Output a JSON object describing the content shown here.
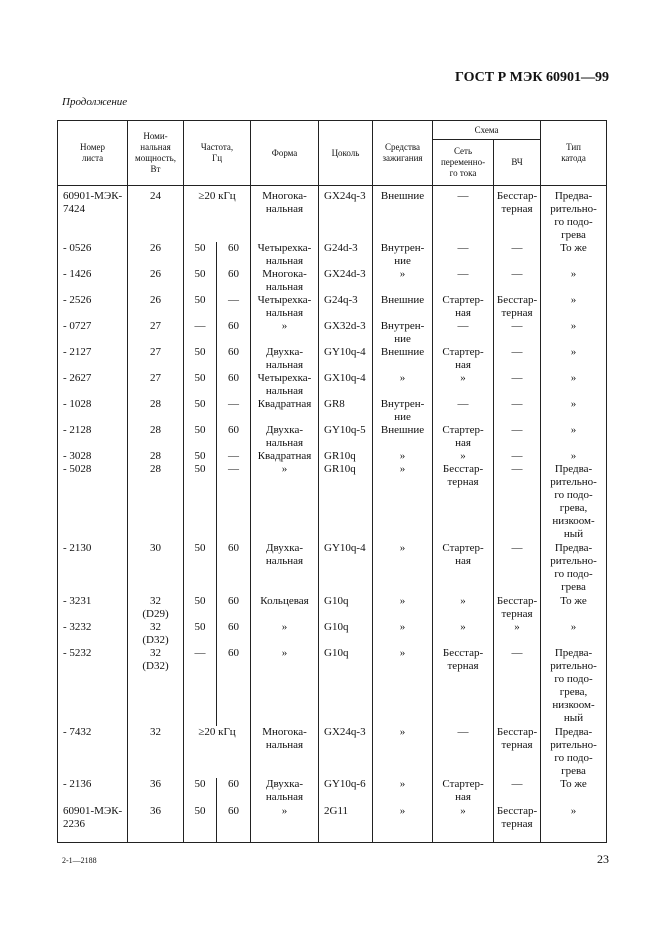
{
  "header": "ГОСТ Р МЭК 60901—99",
  "continuation": "Продолжение",
  "table": {
    "headers": {
      "sheet": "Номер\nлиста",
      "power": "Номи-\nнальная\nмощность,\nВт",
      "freq": "Частота,\nГц",
      "shape": "Форма",
      "base": "Цоколь",
      "ignition": "Средства\nзажигания",
      "scheme": "Схема",
      "ac": "Сеть\nпеременно-\nго тока",
      "hf": "ВЧ",
      "cathode": "Тип\nкатода"
    },
    "rows": [
      {
        "sheet": "60901-МЭК-\n7424",
        "power": "24",
        "freq": "≥20 кГц",
        "shape": "Многока-\nнальная",
        "base": "GX24q-3",
        "ign": "Внешние",
        "ac": "—",
        "hf": "Бесстар-\nтерная",
        "cat": "Предва-\nрительно-\nго подо-\nгрева"
      },
      {
        "sheet": "- 0526",
        "power": "26",
        "f1": "50",
        "f2": "60",
        "shape": "Четырехка-\nнальная",
        "base": "G24d-3",
        "ign": "Внутрен-\nние",
        "ac": "—",
        "hf": "—",
        "cat": "То же"
      },
      {
        "sheet": "- 1426",
        "power": "26",
        "f1": "50",
        "f2": "60",
        "shape": "Многока-\nнальная",
        "base": "GX24d-3",
        "ign": "»",
        "ac": "—",
        "hf": "—",
        "cat": "»"
      },
      {
        "sheet": "- 2526",
        "power": "26",
        "f1": "50",
        "f2": "—",
        "shape": "Четырехка-\nнальная",
        "base": "G24q-3",
        "ign": "Внешние",
        "ac": "Стартер-\nная",
        "hf": "Бесстар-\nтерная",
        "cat": "»"
      },
      {
        "sheet": "- 0727",
        "power": "27",
        "f1": "—",
        "f2": "60",
        "shape": "»",
        "base": "GX32d-3",
        "ign": "Внутрен-\nние",
        "ac": "—",
        "hf": "—",
        "cat": "»"
      },
      {
        "sheet": "- 2127",
        "power": "27",
        "f1": "50",
        "f2": "60",
        "shape": "Двухка-\nнальная",
        "base": "GY10q-4",
        "ign": "Внешние",
        "ac": "Стартер-\nная",
        "hf": "—",
        "cat": "»"
      },
      {
        "sheet": "- 2627",
        "power": "27",
        "f1": "50",
        "f2": "60",
        "shape": "Четырехка-\nнальная",
        "base": "GX10q-4",
        "ign": "»",
        "ac": "»",
        "hf": "—",
        "cat": "»"
      },
      {
        "sheet": "- 1028",
        "power": "28",
        "f1": "50",
        "f2": "—",
        "shape": "Квадратная",
        "base": "GR8",
        "ign": "Внутрен-\nние",
        "ac": "—",
        "hf": "—",
        "cat": "»"
      },
      {
        "sheet": "- 2128",
        "power": "28",
        "f1": "50",
        "f2": "60",
        "shape": "Двухка-\nнальная",
        "base": "GY10q-5",
        "ign": "Внешние",
        "ac": "Стартер-\nная",
        "hf": "—",
        "cat": "»"
      },
      {
        "sheet": "- 3028",
        "power": "28",
        "f1": "50",
        "f2": "—",
        "shape": "Квадратная",
        "base": "GR10q",
        "ign": "»",
        "ac": "»",
        "hf": "—",
        "cat": "»"
      },
      {
        "sheet": "- 5028",
        "power": "28",
        "f1": "50",
        "f2": "—",
        "shape": "»",
        "base": "GR10q",
        "ign": "»",
        "ac": "Бесстар-\nтерная",
        "hf": "—",
        "cat": "Предва-\nрительно-\nго подо-\nгрева,\nнизкоом-\nный"
      },
      {
        "sheet": "- 2130",
        "power": "30",
        "f1": "50",
        "f2": "60",
        "shape": "Двухка-\nнальная",
        "base": "GY10q-4",
        "ign": "»",
        "ac": "Стартер-\nная",
        "hf": "—",
        "cat": "Предва-\nрительно-\nго подо-\nгрева"
      },
      {
        "sheet": "- 3231",
        "power": "32\n(D29)",
        "f1": "50",
        "f2": "60",
        "shape": "Кольцевая",
        "base": "G10q",
        "ign": "»",
        "ac": "»",
        "hf": "Бесстар-\nтерная",
        "cat": "То же"
      },
      {
        "sheet": "- 3232",
        "power": "32\n(D32)",
        "f1": "50",
        "f2": "60",
        "shape": "»",
        "base": "G10q",
        "ign": "»",
        "ac": "»",
        "hf": "»",
        "cat": "»"
      },
      {
        "sheet": "- 5232",
        "power": "32\n(D32)",
        "f1": "—",
        "f2": "60",
        "shape": "»",
        "base": "G10q",
        "ign": "»",
        "ac": "Бесстар-\nтерная",
        "hf": "—",
        "cat": "Предва-\nрительно-\nго подо-\nгрева,\nнизкоом-\nный"
      },
      {
        "sheet": "- 7432",
        "power": "32",
        "freq": "≥20 кГц",
        "shape": "Многока-\nнальная",
        "base": "GX24q-3",
        "ign": "»",
        "ac": "—",
        "hf": "Бесстар-\nтерная",
        "cat": "Предва-\nрительно-\nго подо-\nгрева"
      },
      {
        "sheet": "- 2136",
        "power": "36",
        "f1": "50",
        "f2": "60",
        "shape": "Двухка-\nнальная",
        "base": "GY10q-6",
        "ign": "»",
        "ac": "Стартер-\nная",
        "hf": "—",
        "cat": "То же"
      },
      {
        "sheet": "60901-МЭК-\n2236",
        "power": "36",
        "f1": "50",
        "f2": "60",
        "shape": "»",
        "base": "2G11",
        "ign": "»",
        "ac": "»",
        "hf": "Бесстар-\nтерная",
        "cat": "»"
      }
    ]
  },
  "footer": {
    "code": "2-1—2188",
    "page": "23"
  }
}
